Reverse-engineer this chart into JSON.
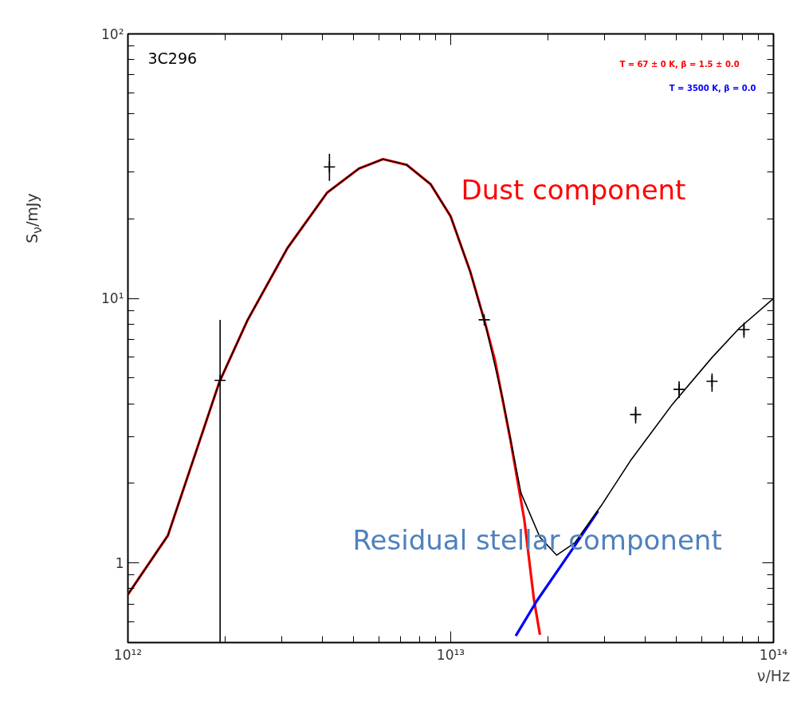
{
  "chart_data": {
    "type": "line",
    "xlabel": "ν/Hz",
    "ylabel": "S$_{ν}$/mJy",
    "log": "xy",
    "xlim": [
      1000000000000.0,
      100000000000000.0
    ],
    "ylim": [
      0.5,
      100
    ],
    "xticks": [
      {
        "value": 1000000000000.0,
        "label": "10¹²"
      },
      {
        "value": 10000000000000.0,
        "label": "10¹³"
      },
      {
        "value": 100000000000000.0,
        "label": "10¹⁴"
      }
    ],
    "yticks": [
      1,
      {
        "value": 10,
        "label": "10¹"
      },
      {
        "value": 100,
        "label": "10²"
      }
    ],
    "series": [
      {
        "color": "#ff0000",
        "x": [
          1000000000000.0,
          1330000000000.0,
          1920000000000.0,
          2350000000000.0,
          3120000000000.0,
          4140000000000.0,
          5200000000000.0,
          6170000000000.0,
          7300000000000.0,
          8670000000000.0,
          10000000000000.0,
          11500000000000.0,
          12700000000000.0,
          13700000000000.0,
          15300000000000.0,
          16900000000000.0,
          18100000000000.0,
          18900000000000.0
        ],
        "values": [
          0.76,
          1.27,
          4.83,
          8.3,
          15.5,
          25.1,
          31,
          33.6,
          32,
          27,
          20.4,
          12.6,
          8.3,
          5.86,
          2.93,
          1.46,
          0.73,
          0.535
        ]
      },
      {
        "color": "#0000ff",
        "x": [
          15900000000000.0,
          18500000000000.0,
          24200000000000.0,
          28600000000000.0
        ],
        "values": [
          0.53,
          0.72,
          1.16,
          1.57
        ]
      },
      {
        "color": "#000000",
        "x": [
          1000000000000.0,
          1330000000000.0,
          1920000000000.0,
          2350000000000.0,
          3120000000000.0,
          4140000000000.0,
          5200000000000.0,
          6170000000000.0,
          7300000000000.0,
          8670000000000.0,
          10000000000000.0,
          11500000000000.0,
          12900000000000.0,
          14500000000000.0,
          16500000000000.0,
          18900000000000.0,
          21300000000000.0,
          24200000000000.0,
          29300000000000.0,
          36000000000000.0,
          48400000000000.0,
          64500000000000.0,
          78500000000000.0,
          100000000000000.0
        ],
        "values": [
          0.76,
          1.27,
          4.83,
          8.3,
          15.5,
          25.1,
          31,
          33.6,
          32,
          27,
          20.4,
          12.6,
          7.7,
          4.15,
          1.84,
          1.25,
          1.07,
          1.19,
          1.65,
          2.43,
          3.95,
          5.98,
          7.74,
          10
        ]
      },
      {
        "type": "scatter",
        "marker": "cross",
        "color": "#000000",
        "x": [
          1930000000000.0,
          4210000000000.0,
          12700000000000.0,
          37400000000000.0,
          51000000000000.0,
          64500000000000.0,
          81000000000000.0
        ],
        "values": [
          4.9,
          31.4,
          8.3,
          3.64,
          4.53,
          4.86,
          7.62
        ],
        "errors": [
          [
            0.5,
            8.3
          ],
          [
            27.8,
            35.2
          ],
          null,
          [
            3.37,
            3.9
          ],
          [
            4.2,
            4.86
          ],
          [
            4.44,
            5.2
          ],
          [
            7.1,
            8.1
          ]
        ]
      }
    ],
    "annotations": [
      "3C296",
      "T =   67 ±    0 K, β = 1.5 ±  0.0",
      "T = 3500 K, β = 0.0",
      "Dust component",
      "Residual stellar component"
    ]
  }
}
